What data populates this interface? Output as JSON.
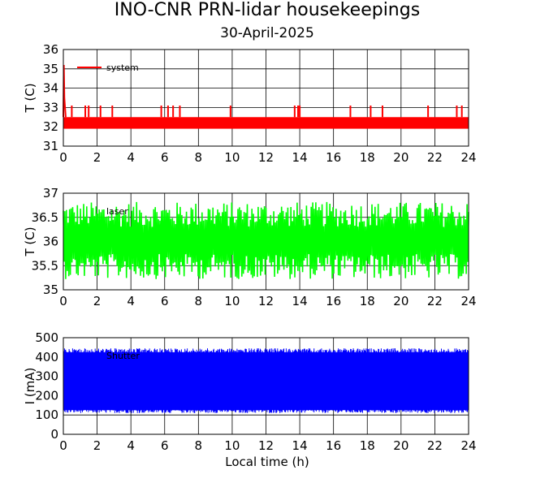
{
  "title": "INO-CNR PRN-lidar housekeepings",
  "subtitle": "30-April-2025",
  "xlabel": "Local time (h)",
  "chart_data": [
    {
      "type": "line",
      "ylabel": "T (C)",
      "xlim": [
        0,
        24
      ],
      "ylim": [
        31,
        36
      ],
      "xticks": [
        "0",
        "2",
        "4",
        "6",
        "8",
        "10",
        "12",
        "14",
        "16",
        "18",
        "20",
        "22",
        "24"
      ],
      "yticks": [
        "31",
        "32",
        "33",
        "34",
        "35",
        "36"
      ],
      "grid": true,
      "legend_position": "top-left",
      "series": [
        {
          "name": "system",
          "color": "#ff0000",
          "low": 31.9,
          "high": 32.5,
          "spikes_to": 33.1,
          "spike_x": [
            0.5,
            1.3,
            1.5,
            2.2,
            2.9,
            5.8,
            6.2,
            6.5,
            6.9,
            9.9,
            13.7,
            13.9,
            14.0,
            17.0,
            18.2,
            18.9,
            21.6,
            23.3,
            23.6
          ],
          "initial_peak": 35.2,
          "gaps_to": 32.0,
          "gap_x": [
            0.3,
            2.9,
            5.9,
            6.9,
            14.1,
            19.5,
            23.2,
            23.6
          ]
        }
      ]
    },
    {
      "type": "line",
      "ylabel": "T (C)",
      "xlim": [
        0,
        24
      ],
      "ylim": [
        35,
        37
      ],
      "xticks": [
        "0",
        "2",
        "4",
        "6",
        "8",
        "10",
        "12",
        "14",
        "16",
        "18",
        "20",
        "22",
        "24"
      ],
      "yticks": [
        "35",
        "35.5",
        "36",
        "36.5",
        "37"
      ],
      "grid": true,
      "legend_position": "top-left",
      "series": [
        {
          "name": "laser",
          "color": "#00ff00",
          "center": 36.02,
          "low": 35.22,
          "high": 36.82
        }
      ]
    },
    {
      "type": "line",
      "ylabel": "I (mA)",
      "xlim": [
        0,
        24
      ],
      "ylim": [
        0,
        500
      ],
      "xticks": [
        "0",
        "2",
        "4",
        "6",
        "8",
        "10",
        "12",
        "14",
        "16",
        "18",
        "20",
        "22",
        "24"
      ],
      "yticks": [
        "0",
        "100",
        "200",
        "300",
        "400",
        "500"
      ],
      "grid": true,
      "legend_position": "top-left",
      "series": [
        {
          "name": "Shutter",
          "color": "#0000ff",
          "low": 110,
          "high": 445
        }
      ]
    }
  ]
}
